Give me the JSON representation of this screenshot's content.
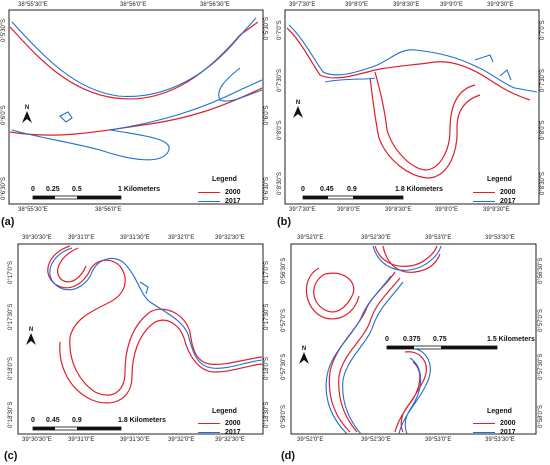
{
  "legend": {
    "title": "Legend",
    "entries": [
      {
        "label": "2000",
        "color": "#e0202a"
      },
      {
        "label": "2017",
        "color": "#1f6fd0"
      }
    ]
  },
  "north_label": "N",
  "panels": [
    {
      "id": "a",
      "label": "(a)",
      "top_ticks": [
        "38°55'30\"E",
        "38°56'0\"E",
        "38°56'30\"E"
      ],
      "bottom_ticks": [
        "38°55'30\"E",
        "38°56'0\"E"
      ],
      "left_ticks": [
        "0°5'30\"S",
        "0°6'0\"S",
        "0°6'30\"S"
      ],
      "right_ticks": [
        "0°5'30\"S",
        "0°6'0\"S",
        "0°6'30\"S"
      ],
      "scale_numbers": [
        "0",
        "0.25",
        "0.5",
        "1 Kilometers"
      ]
    },
    {
      "id": "b",
      "label": "(b)",
      "top_ticks": [
        "39°7'30\"E",
        "39°8'0\"E",
        "39°8'30\"E",
        "39°9'0\"E",
        "39°9'30\"E"
      ],
      "bottom_ticks": [
        "39°7'30\"E",
        "39°8'0\"E",
        "39°8'30\"E",
        "39°9'0\"E",
        "39°9'30\"E"
      ],
      "left_ticks": [
        "0°7'0\"S",
        "0°7'30\"S",
        "0°8'0\"S",
        "0°8'30\"S"
      ],
      "right_ticks": [
        "0°7'0\"S",
        "0°7'30\"S",
        "0°8'0\"S",
        "0°8'30\"S"
      ],
      "scale_numbers": [
        "0",
        "0.45",
        "0.9",
        "1.8 Kilometers"
      ]
    },
    {
      "id": "c",
      "label": "(c)",
      "top_ticks": [
        "39°30'30\"E",
        "39°31'0\"E",
        "39°31'30\"E",
        "39°32'0\"E",
        "39°32'30\"E"
      ],
      "bottom_ticks": [
        "39°30'30\"E",
        "39°31'0\"E",
        "39°31'30\"E",
        "39°32'0\"E",
        "39°32'30\"E"
      ],
      "left_ticks": [
        "0°17'0\"S",
        "0°17'30\"S",
        "0°18'0\"S",
        "0°18'30\"S"
      ],
      "right_ticks": [
        "0°17'0\"S",
        "0°17'30\"S",
        "0°18'0\"S",
        "0°18'30\"S"
      ],
      "scale_numbers": [
        "0",
        "0.45",
        "0.9",
        "1.8 Kilometers"
      ]
    },
    {
      "id": "d",
      "label": "(d)",
      "top_ticks": [
        "39°52'0\"E",
        "39°52'30\"E",
        "39°53'0\"E",
        "39°53'30\"E"
      ],
      "bottom_ticks": [
        "39°52'0\"E",
        "39°52'30\"E",
        "39°53'0\"E",
        "39°53'30\"E"
      ],
      "left_ticks": [
        "0°56'30\"S",
        "0°57'0\"S",
        "0°57'30\"S",
        "0°58'0\"S"
      ],
      "right_ticks": [
        "0°56'30\"S",
        "0°57'0\"S",
        "0°57'30\"S",
        "0°58'0\"S"
      ],
      "scale_numbers": [
        "0",
        "0.375",
        "0.75",
        "1.5 Kilometers"
      ]
    }
  ]
}
